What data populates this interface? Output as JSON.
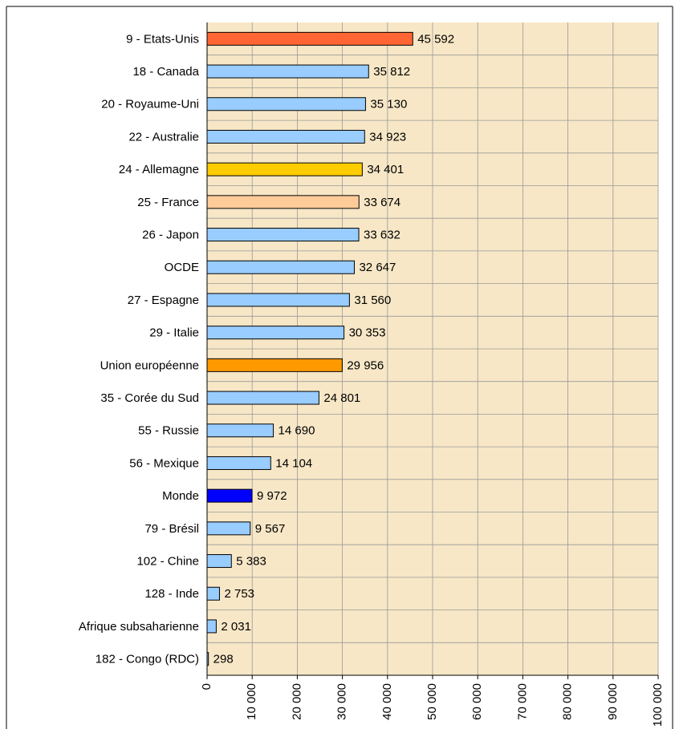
{
  "chart_data": {
    "type": "hbar",
    "categories": [
      "9 - Etats-Unis",
      "18 - Canada",
      "20 - Royaume-Uni",
      "22 - Australie",
      "24 - Allemagne",
      "25 - France",
      "26 - Japon",
      "OCDE",
      "27 - Espagne",
      "29 - Italie",
      "Union européenne",
      "35 - Corée du Sud",
      "55 - Russie",
      "56 - Mexique",
      "Monde",
      "79 - Brésil",
      "102 - Chine",
      "128 - Inde",
      "Afrique subsaharienne",
      "182 - Congo (RDC)"
    ],
    "values": [
      45592,
      35812,
      35130,
      34923,
      34401,
      33674,
      33632,
      32647,
      31560,
      30353,
      29956,
      24801,
      14690,
      14104,
      9972,
      9567,
      5383,
      2753,
      2031,
      298
    ],
    "value_labels": [
      "45 592",
      "35 812",
      "35 130",
      "34 923",
      "34 401",
      "33 674",
      "33 632",
      "32 647",
      "31 560",
      "30 353",
      "29 956",
      "24 801",
      "14 690",
      "14 104",
      "9 972",
      "9 567",
      "5 383",
      "2 753",
      "2 031",
      "298"
    ],
    "colors": [
      "#ff6633",
      "#99ccff",
      "#99ccff",
      "#99ccff",
      "#ffcc00",
      "#ffcc99",
      "#99ccff",
      "#99ccff",
      "#99ccff",
      "#99ccff",
      "#ff9900",
      "#99ccff",
      "#99ccff",
      "#99ccff",
      "#0000ff",
      "#99ccff",
      "#99ccff",
      "#99ccff",
      "#99ccff",
      "#99ccff"
    ],
    "xlim": [
      0,
      100000
    ],
    "xticks": [
      0,
      {
        "value": 10000,
        "label": "10 000"
      },
      {
        "value": 20000,
        "label": "20 000"
      },
      {
        "value": 30000,
        "label": "30 000"
      },
      {
        "value": 40000,
        "label": "40 000"
      },
      {
        "value": 50000,
        "label": "50 000"
      },
      {
        "value": 60000,
        "label": "60 000"
      },
      {
        "value": 70000,
        "label": "70 000"
      },
      {
        "value": 80000,
        "label": "80 000"
      },
      {
        "value": 90000,
        "label": "90 000"
      },
      {
        "value": 100000,
        "label": "100 000"
      }
    ],
    "grid": true
  }
}
